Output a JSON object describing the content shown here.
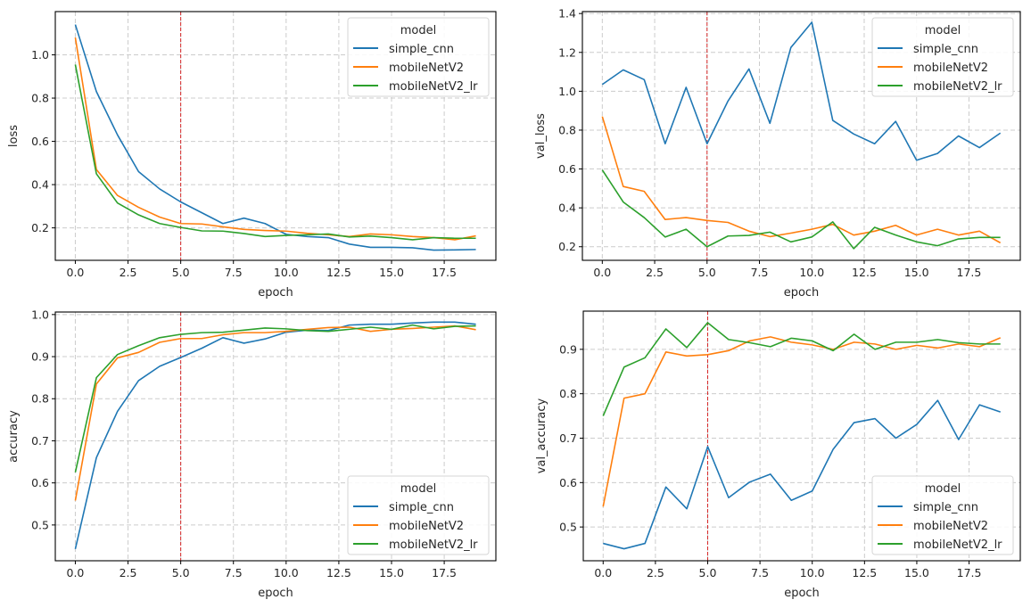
{
  "figure": {
    "legend_title": "model",
    "series_names": [
      "simple_cnn",
      "mobileNetV2",
      "mobileNetV2_lr"
    ],
    "series_colors": [
      "#1f77b4",
      "#ff7f0e",
      "#2ca02c"
    ],
    "marker_line_color": "#d62728"
  },
  "chart_data": [
    {
      "type": "line",
      "title": "",
      "xlabel": "epoch",
      "ylabel": "loss",
      "x": [
        0,
        1,
        2,
        3,
        4,
        5,
        6,
        7,
        8,
        9,
        10,
        11,
        12,
        13,
        14,
        15,
        16,
        17,
        18,
        19
      ],
      "xlim": [
        -0.95,
        19.95
      ],
      "ylim": [
        0.05,
        1.2
      ],
      "xticks": [
        0.0,
        2.5,
        5.0,
        7.5,
        10.0,
        12.5,
        15.0,
        17.5
      ],
      "xtick_labels": [
        "0.0",
        "2.5",
        "5.0",
        "7.5",
        "10.0",
        "12.5",
        "15.0",
        "17.5"
      ],
      "yticks": [
        0.2,
        0.4,
        0.6,
        0.8,
        1.0
      ],
      "ytick_labels": [
        "0.2",
        "0.4",
        "0.6",
        "0.8",
        "1.0"
      ],
      "grid": true,
      "vline_x": 5,
      "legend_position": "upper-right",
      "series": [
        {
          "name": "simple_cnn",
          "values": [
            1.14,
            0.83,
            0.63,
            0.46,
            0.38,
            0.32,
            0.27,
            0.22,
            0.245,
            0.22,
            0.17,
            0.16,
            0.155,
            0.125,
            0.11,
            0.11,
            0.108,
            0.097,
            0.098,
            0.1
          ]
        },
        {
          "name": "mobileNetV2",
          "values": [
            1.08,
            0.47,
            0.35,
            0.295,
            0.25,
            0.22,
            0.218,
            0.205,
            0.193,
            0.188,
            0.185,
            0.175,
            0.168,
            0.16,
            0.172,
            0.168,
            0.16,
            0.155,
            0.145,
            0.163
          ]
        },
        {
          "name": "mobileNetV2_lr",
          "values": [
            0.955,
            0.45,
            0.315,
            0.26,
            0.22,
            0.202,
            0.186,
            0.185,
            0.174,
            0.16,
            0.165,
            0.168,
            0.172,
            0.158,
            0.162,
            0.155,
            0.145,
            0.155,
            0.152,
            0.152
          ]
        }
      ]
    },
    {
      "type": "line",
      "title": "",
      "xlabel": "epoch",
      "ylabel": "val_loss",
      "x": [
        0,
        1,
        2,
        3,
        4,
        5,
        6,
        7,
        8,
        9,
        10,
        11,
        12,
        13,
        14,
        15,
        16,
        17,
        18,
        19
      ],
      "xlim": [
        -0.95,
        19.95
      ],
      "ylim": [
        0.13,
        1.41
      ],
      "xticks": [
        0.0,
        2.5,
        5.0,
        7.5,
        10.0,
        12.5,
        15.0,
        17.5
      ],
      "xtick_labels": [
        "0.0",
        "2.5",
        "5.0",
        "7.5",
        "10.0",
        "12.5",
        "15.0",
        "17.5"
      ],
      "yticks": [
        0.2,
        0.4,
        0.6,
        0.8,
        1.0,
        1.2,
        1.4
      ],
      "ytick_labels": [
        "0.2",
        "0.4",
        "0.6",
        "0.8",
        "1.0",
        "1.2",
        "1.4"
      ],
      "grid": true,
      "vline_x": 5,
      "legend_position": "upper-right",
      "series": [
        {
          "name": "simple_cnn",
          "values": [
            1.035,
            1.11,
            1.06,
            0.73,
            1.02,
            0.73,
            0.95,
            1.115,
            0.835,
            1.225,
            1.355,
            0.85,
            0.78,
            0.73,
            0.845,
            0.645,
            0.68,
            0.77,
            0.71,
            0.785
          ]
        },
        {
          "name": "mobileNetV2",
          "values": [
            0.87,
            0.51,
            0.485,
            0.34,
            0.35,
            0.335,
            0.325,
            0.28,
            0.252,
            0.27,
            0.29,
            0.315,
            0.26,
            0.28,
            0.31,
            0.26,
            0.29,
            0.26,
            0.28,
            0.22
          ]
        },
        {
          "name": "mobileNetV2_lr",
          "values": [
            0.595,
            0.43,
            0.35,
            0.25,
            0.29,
            0.2,
            0.255,
            0.258,
            0.275,
            0.225,
            0.25,
            0.328,
            0.19,
            0.3,
            0.26,
            0.225,
            0.205,
            0.24,
            0.248,
            0.248
          ]
        }
      ]
    },
    {
      "type": "line",
      "title": "",
      "xlabel": "epoch",
      "ylabel": "accuracy",
      "x": [
        0,
        1,
        2,
        3,
        4,
        5,
        6,
        7,
        8,
        9,
        10,
        11,
        12,
        13,
        14,
        15,
        16,
        17,
        18,
        19
      ],
      "xlim": [
        -0.95,
        19.95
      ],
      "ylim": [
        0.415,
        1.006
      ],
      "xticks": [
        0.0,
        2.5,
        5.0,
        7.5,
        10.0,
        12.5,
        15.0,
        17.5
      ],
      "xtick_labels": [
        "0.0",
        "2.5",
        "5.0",
        "7.5",
        "10.0",
        "12.5",
        "15.0",
        "17.5"
      ],
      "yticks": [
        0.5,
        0.6,
        0.7,
        0.8,
        0.9,
        1.0
      ],
      "ytick_labels": [
        "0.5",
        "0.6",
        "0.7",
        "0.8",
        "0.9",
        "1.0"
      ],
      "grid": true,
      "vline_x": 5,
      "legend_position": "lower-right",
      "series": [
        {
          "name": "simple_cnn",
          "values": [
            0.443,
            0.66,
            0.77,
            0.843,
            0.877,
            0.898,
            0.92,
            0.945,
            0.932,
            0.942,
            0.958,
            0.963,
            0.962,
            0.975,
            0.977,
            0.977,
            0.98,
            0.982,
            0.982,
            0.977
          ]
        },
        {
          "name": "mobileNetV2",
          "values": [
            0.558,
            0.835,
            0.897,
            0.91,
            0.934,
            0.943,
            0.943,
            0.952,
            0.957,
            0.957,
            0.96,
            0.965,
            0.969,
            0.97,
            0.96,
            0.965,
            0.967,
            0.97,
            0.973,
            0.964
          ]
        },
        {
          "name": "mobileNetV2_lr",
          "values": [
            0.625,
            0.85,
            0.905,
            0.926,
            0.945,
            0.953,
            0.957,
            0.958,
            0.963,
            0.968,
            0.966,
            0.962,
            0.96,
            0.965,
            0.97,
            0.965,
            0.975,
            0.966,
            0.972,
            0.973
          ]
        }
      ]
    },
    {
      "type": "line",
      "title": "",
      "xlabel": "epoch",
      "ylabel": "val_accuracy",
      "x": [
        0,
        1,
        2,
        3,
        4,
        5,
        6,
        7,
        8,
        9,
        10,
        11,
        12,
        13,
        14,
        15,
        16,
        17,
        18,
        19
      ],
      "xlim": [
        -0.95,
        19.95
      ],
      "ylim": [
        0.424,
        0.986
      ],
      "xticks": [
        0.0,
        2.5,
        5.0,
        7.5,
        10.0,
        12.5,
        15.0,
        17.5
      ],
      "xtick_labels": [
        "0.0",
        "2.5",
        "5.0",
        "7.5",
        "10.0",
        "12.5",
        "15.0",
        "17.5"
      ],
      "yticks": [
        0.5,
        0.6,
        0.7,
        0.8,
        0.9
      ],
      "ytick_labels": [
        "0.5",
        "0.6",
        "0.7",
        "0.8",
        "0.9"
      ],
      "grid": true,
      "vline_x": 5,
      "legend_position": "lower-right",
      "series": [
        {
          "name": "simple_cnn",
          "values": [
            0.463,
            0.451,
            0.463,
            0.59,
            0.541,
            0.681,
            0.566,
            0.601,
            0.619,
            0.56,
            0.581,
            0.675,
            0.735,
            0.744,
            0.7,
            0.731,
            0.785,
            0.697,
            0.775,
            0.759
          ]
        },
        {
          "name": "mobileNetV2",
          "values": [
            0.546,
            0.79,
            0.8,
            0.894,
            0.885,
            0.888,
            0.897,
            0.919,
            0.928,
            0.916,
            0.91,
            0.9,
            0.916,
            0.912,
            0.9,
            0.909,
            0.903,
            0.912,
            0.906,
            0.926
          ]
        },
        {
          "name": "mobileNetV2_lr",
          "values": [
            0.75,
            0.86,
            0.881,
            0.946,
            0.904,
            0.96,
            0.922,
            0.915,
            0.906,
            0.925,
            0.919,
            0.897,
            0.934,
            0.9,
            0.916,
            0.916,
            0.922,
            0.915,
            0.912,
            0.912
          ]
        }
      ]
    }
  ]
}
